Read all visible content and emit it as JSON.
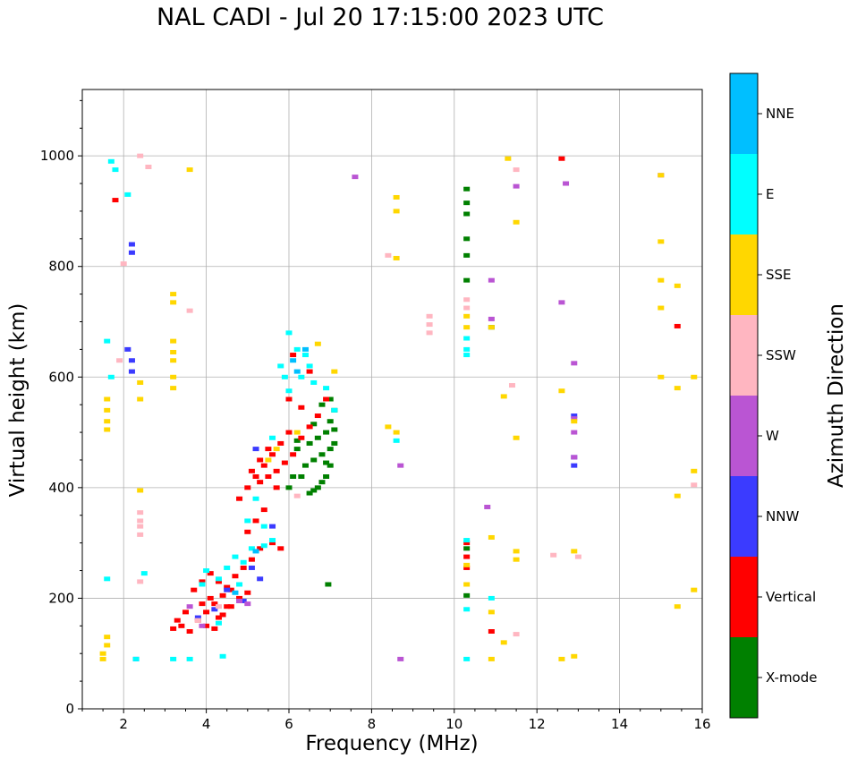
{
  "chart_data": {
    "type": "scatter",
    "title": "NAL CADI - Jul 20 17:15:00 2023 UTC",
    "xlabel": "Frequency (MHz)",
    "ylabel": "Virtual height (km)",
    "xlim": [
      1,
      16
    ],
    "ylim": [
      0,
      1120
    ],
    "xticks": [
      2,
      4,
      6,
      8,
      10,
      12,
      14,
      16
    ],
    "yticks": [
      0,
      200,
      400,
      600,
      800,
      1000
    ],
    "grid": true,
    "colorbar": {
      "label": "Azimuth Direction",
      "categories": [
        {
          "name": "X-mode",
          "color": "#008000"
        },
        {
          "name": "Vertical",
          "color": "#ff0000"
        },
        {
          "name": "NNW",
          "color": "#3b3bff"
        },
        {
          "name": "W",
          "color": "#ba55d3"
        },
        {
          "name": "SSW",
          "color": "#ffb6c1"
        },
        {
          "name": "SSE",
          "color": "#ffd700"
        },
        {
          "name": "E",
          "color": "#00ffff"
        },
        {
          "name": "NNE",
          "color": "#00bfff"
        }
      ]
    },
    "series": [
      {
        "name": "X-mode",
        "points": [
          [
            6.5,
            390
          ],
          [
            6.6,
            395
          ],
          [
            6.7,
            400
          ],
          [
            6.8,
            410
          ],
          [
            6.9,
            420
          ],
          [
            7.0,
            440
          ],
          [
            6.6,
            450
          ],
          [
            6.8,
            460
          ],
          [
            7.0,
            470
          ],
          [
            7.1,
            480
          ],
          [
            6.9,
            500
          ],
          [
            7.0,
            520
          ],
          [
            7.1,
            540
          ],
          [
            6.8,
            550
          ],
          [
            7.0,
            560
          ],
          [
            6.3,
            420
          ],
          [
            6.4,
            440
          ],
          [
            6.2,
            470
          ],
          [
            6.5,
            480
          ],
          [
            6.7,
            490
          ],
          [
            6.0,
            400
          ],
          [
            6.1,
            420
          ],
          [
            6.9,
            445
          ],
          [
            7.1,
            505
          ],
          [
            6.6,
            515
          ],
          [
            6.2,
            485
          ],
          [
            6.95,
            225
          ],
          [
            10.3,
            940
          ],
          [
            10.3,
            915
          ],
          [
            10.3,
            895
          ],
          [
            10.3,
            850
          ],
          [
            10.3,
            820
          ],
          [
            10.3,
            775
          ],
          [
            10.3,
            205
          ],
          [
            10.3,
            290
          ],
          [
            10.9,
            690
          ]
        ]
      },
      {
        "name": "Vertical",
        "points": [
          [
            3.2,
            145
          ],
          [
            3.4,
            150
          ],
          [
            3.6,
            140
          ],
          [
            3.8,
            160
          ],
          [
            4.0,
            150
          ],
          [
            4.2,
            145
          ],
          [
            4.4,
            170
          ],
          [
            4.6,
            185
          ],
          [
            4.8,
            200
          ],
          [
            5.0,
            210
          ],
          [
            3.7,
            215
          ],
          [
            3.9,
            230
          ],
          [
            4.1,
            245
          ],
          [
            4.3,
            230
          ],
          [
            4.5,
            220
          ],
          [
            4.7,
            240
          ],
          [
            4.9,
            255
          ],
          [
            5.1,
            270
          ],
          [
            5.3,
            290
          ],
          [
            4.0,
            175
          ],
          [
            4.2,
            190
          ],
          [
            4.4,
            205
          ],
          [
            4.6,
            215
          ],
          [
            5.0,
            320
          ],
          [
            5.2,
            340
          ],
          [
            5.4,
            360
          ],
          [
            4.8,
            380
          ],
          [
            5.0,
            400
          ],
          [
            5.2,
            420
          ],
          [
            5.4,
            440
          ],
          [
            5.6,
            460
          ],
          [
            5.8,
            480
          ],
          [
            6.0,
            500
          ],
          [
            5.3,
            410
          ],
          [
            5.5,
            420
          ],
          [
            5.7,
            430
          ],
          [
            5.9,
            445
          ],
          [
            6.1,
            460
          ],
          [
            6.3,
            490
          ],
          [
            6.5,
            510
          ],
          [
            6.7,
            530
          ],
          [
            6.9,
            560
          ],
          [
            5.1,
            430
          ],
          [
            5.3,
            450
          ],
          [
            5.5,
            470
          ],
          [
            5.7,
            400
          ],
          [
            6.0,
            560
          ],
          [
            6.3,
            545
          ],
          [
            6.1,
            640
          ],
          [
            6.5,
            610
          ],
          [
            3.9,
            190
          ],
          [
            4.5,
            185
          ],
          [
            3.5,
            175
          ],
          [
            4.1,
            200
          ],
          [
            4.3,
            165
          ],
          [
            3.3,
            160
          ],
          [
            5.6,
            300
          ],
          [
            5.8,
            290
          ],
          [
            1.8,
            920
          ],
          [
            10.3,
            300
          ],
          [
            10.3,
            255
          ],
          [
            10.3,
            275
          ],
          [
            10.9,
            140
          ],
          [
            12.6,
            995
          ],
          [
            15.4,
            692
          ]
        ]
      },
      {
        "name": "NNW",
        "points": [
          [
            2.2,
            840
          ],
          [
            2.2,
            825
          ],
          [
            2.2,
            630
          ],
          [
            2.2,
            610
          ],
          [
            2.1,
            650
          ],
          [
            2.3,
            90
          ],
          [
            3.8,
            165
          ],
          [
            4.2,
            180
          ],
          [
            4.5,
            215
          ],
          [
            4.9,
            195
          ],
          [
            5.3,
            235
          ],
          [
            5.1,
            255
          ],
          [
            5.6,
            330
          ],
          [
            5.2,
            470
          ],
          [
            12.9,
            440
          ],
          [
            12.9,
            455
          ],
          [
            12.9,
            530
          ]
        ]
      },
      {
        "name": "W",
        "points": [
          [
            7.6,
            962
          ],
          [
            11.5,
            945
          ],
          [
            10.9,
            775
          ],
          [
            10.9,
            705
          ],
          [
            10.8,
            365
          ],
          [
            8.7,
            440
          ],
          [
            8.7,
            90
          ],
          [
            12.7,
            950
          ],
          [
            12.6,
            735
          ],
          [
            12.9,
            625
          ],
          [
            12.9,
            500
          ],
          [
            12.9,
            455
          ],
          [
            12.9,
            525
          ],
          [
            15.0,
            965
          ],
          [
            3.6,
            185
          ],
          [
            3.9,
            150
          ],
          [
            4.8,
            195
          ],
          [
            5.0,
            190
          ]
        ]
      },
      {
        "name": "SSW",
        "points": [
          [
            2.4,
            1000
          ],
          [
            2.6,
            980
          ],
          [
            2.0,
            805
          ],
          [
            2.4,
            355
          ],
          [
            2.4,
            340
          ],
          [
            2.4,
            330
          ],
          [
            2.4,
            315
          ],
          [
            2.4,
            230
          ],
          [
            1.9,
            630
          ],
          [
            3.6,
            720
          ],
          [
            8.4,
            820
          ],
          [
            9.4,
            710
          ],
          [
            9.4,
            695
          ],
          [
            9.4,
            680
          ],
          [
            10.3,
            740
          ],
          [
            10.3,
            725
          ],
          [
            11.4,
            585
          ],
          [
            11.5,
            975
          ],
          [
            11.5,
            135
          ],
          [
            12.4,
            278
          ],
          [
            13.0,
            275
          ],
          [
            15.8,
            405
          ],
          [
            6.2,
            385
          ],
          [
            3.8,
            160
          ],
          [
            4.3,
            185
          ]
        ]
      },
      {
        "name": "SSE",
        "points": [
          [
            1.6,
            560
          ],
          [
            1.6,
            540
          ],
          [
            1.6,
            520
          ],
          [
            1.6,
            505
          ],
          [
            1.5,
            100
          ],
          [
            1.6,
            115
          ],
          [
            1.6,
            130
          ],
          [
            1.5,
            90
          ],
          [
            2.4,
            590
          ],
          [
            2.4,
            560
          ],
          [
            2.4,
            395
          ],
          [
            3.2,
            750
          ],
          [
            3.2,
            735
          ],
          [
            3.2,
            665
          ],
          [
            3.2,
            645
          ],
          [
            3.2,
            630
          ],
          [
            3.2,
            600
          ],
          [
            3.2,
            580
          ],
          [
            3.6,
            975
          ],
          [
            8.6,
            925
          ],
          [
            8.6,
            900
          ],
          [
            8.6,
            815
          ],
          [
            8.6,
            500
          ],
          [
            8.4,
            510
          ],
          [
            10.3,
            710
          ],
          [
            10.3,
            690
          ],
          [
            10.3,
            260
          ],
          [
            10.3,
            225
          ],
          [
            10.9,
            690
          ],
          [
            10.9,
            310
          ],
          [
            10.9,
            175
          ],
          [
            10.9,
            90
          ],
          [
            11.2,
            565
          ],
          [
            11.3,
            995
          ],
          [
            11.5,
            880
          ],
          [
            11.5,
            490
          ],
          [
            11.5,
            285
          ],
          [
            11.5,
            270
          ],
          [
            11.2,
            120
          ],
          [
            12.6,
            575
          ],
          [
            12.6,
            90
          ],
          [
            12.9,
            95
          ],
          [
            12.9,
            285
          ],
          [
            12.9,
            520
          ],
          [
            15.0,
            965
          ],
          [
            15.0,
            845
          ],
          [
            15.0,
            775
          ],
          [
            15.0,
            725
          ],
          [
            15.0,
            600
          ],
          [
            15.4,
            765
          ],
          [
            15.4,
            580
          ],
          [
            15.4,
            385
          ],
          [
            15.4,
            185
          ],
          [
            15.8,
            600
          ],
          [
            15.8,
            430
          ],
          [
            15.8,
            215
          ],
          [
            5.7,
            470
          ],
          [
            5.5,
            450
          ],
          [
            6.2,
            500
          ],
          [
            6.7,
            660
          ],
          [
            7.1,
            610
          ]
        ]
      },
      {
        "name": "E",
        "points": [
          [
            1.7,
            990
          ],
          [
            1.8,
            975
          ],
          [
            2.1,
            930
          ],
          [
            1.6,
            665
          ],
          [
            1.7,
            600
          ],
          [
            2.5,
            245
          ],
          [
            2.3,
            90
          ],
          [
            1.6,
            235
          ],
          [
            3.2,
            90
          ],
          [
            3.6,
            90
          ],
          [
            4.4,
            95
          ],
          [
            4.0,
            250
          ],
          [
            4.3,
            235
          ],
          [
            4.5,
            255
          ],
          [
            4.7,
            275
          ],
          [
            4.9,
            265
          ],
          [
            5.1,
            290
          ],
          [
            5.4,
            295
          ],
          [
            5.0,
            340
          ],
          [
            5.4,
            330
          ],
          [
            5.6,
            305
          ],
          [
            5.2,
            380
          ],
          [
            5.6,
            490
          ],
          [
            5.9,
            600
          ],
          [
            6.0,
            680
          ],
          [
            6.2,
            650
          ],
          [
            6.4,
            640
          ],
          [
            6.5,
            620
          ],
          [
            6.6,
            590
          ],
          [
            6.9,
            580
          ],
          [
            7.1,
            540
          ],
          [
            5.8,
            620
          ],
          [
            6.0,
            575
          ],
          [
            6.3,
            600
          ],
          [
            3.9,
            225
          ],
          [
            4.3,
            155
          ],
          [
            4.8,
            225
          ],
          [
            10.3,
            670
          ],
          [
            10.3,
            650
          ],
          [
            10.3,
            640
          ],
          [
            10.9,
            200
          ],
          [
            10.3,
            180
          ],
          [
            10.3,
            90
          ],
          [
            8.6,
            485
          ],
          [
            10.3,
            305
          ]
        ]
      },
      {
        "name": "NNE",
        "points": [
          [
            4.7,
            210
          ],
          [
            5.2,
            285
          ],
          [
            6.1,
            630
          ],
          [
            6.4,
            650
          ],
          [
            6.2,
            610
          ]
        ]
      }
    ]
  }
}
